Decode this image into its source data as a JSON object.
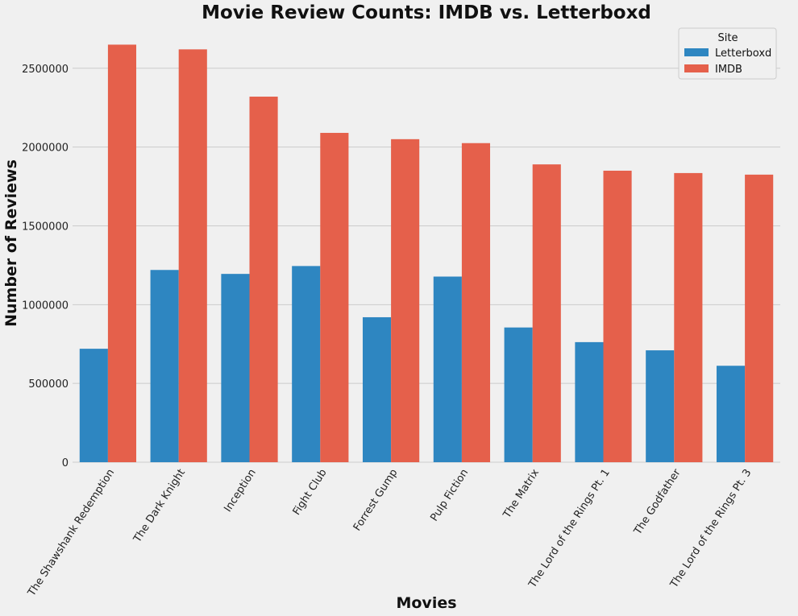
{
  "chart_data": {
    "type": "bar",
    "title": "Movie Review Counts: IMDB vs. Letterboxd",
    "xlabel": "Movies",
    "ylabel": "Number of Reviews",
    "categories": [
      "The Shawshank Redemption",
      "The Dark Knight",
      "Inception",
      "Fight Club",
      "Forrest Gump",
      "Pulp Fiction",
      "The Matrix",
      "The Lord of the Rings Pt. 1",
      "The Godfather",
      "The Lord of the Rings Pt. 3"
    ],
    "series": [
      {
        "name": "Letterboxd",
        "color": "#2e86c1",
        "values": [
          720000,
          1220000,
          1195000,
          1245000,
          920000,
          1178000,
          855000,
          762000,
          710000,
          612000
        ]
      },
      {
        "name": "IMDB",
        "color": "#e5604b",
        "values": [
          2650000,
          2620000,
          2320000,
          2090000,
          2050000,
          2025000,
          1890000,
          1850000,
          1835000,
          1825000
        ]
      }
    ],
    "ylim": [
      0,
      2780000
    ],
    "yticks": [
      0,
      500000,
      1000000,
      1500000,
      2000000,
      2500000
    ],
    "ytick_labels": [
      "0",
      "500000",
      "1000000",
      "1500000",
      "2000000",
      "2500000"
    ],
    "grid": true,
    "legend": {
      "title": "Site",
      "position": "top-right"
    }
  }
}
